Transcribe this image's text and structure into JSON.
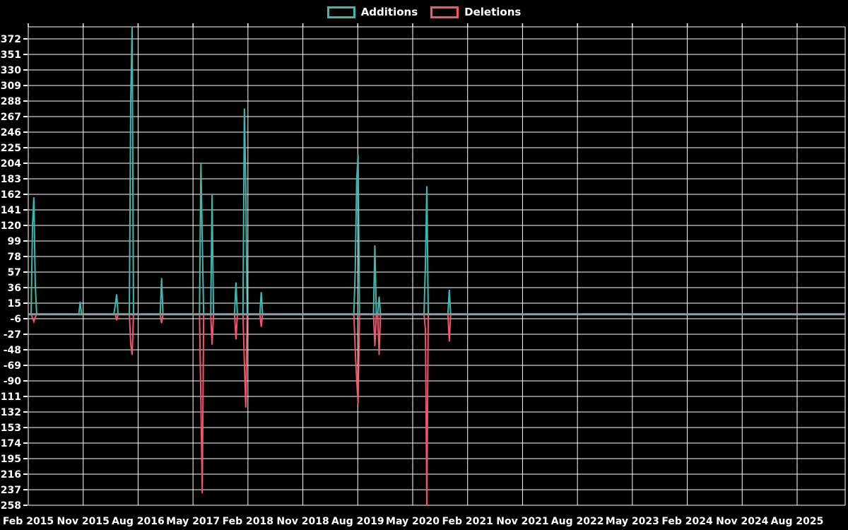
{
  "legend": {
    "items": [
      {
        "label": "Additions",
        "color": "#3cb8b1"
      },
      {
        "label": "Deletions",
        "color": "#f2556c"
      }
    ]
  },
  "colors": {
    "background": "#000000",
    "grid_line": "#ffffff",
    "zero_line": "#87a1a8",
    "axis_text": "#ffffff",
    "additions": "#3cb8b1",
    "deletions": "#f2556c"
  },
  "chart_data": {
    "type": "line",
    "title": "",
    "xlabel": "",
    "ylabel": "",
    "grid": true,
    "legend_position": "top-center",
    "baseline_value": 0,
    "x_axis": {
      "start": "2015-02-01",
      "end": "2026-04-01",
      "tick_interval_months": 9,
      "tick_labels": [
        "Feb 2015",
        "Nov 2015",
        "Aug 2016",
        "May 2017",
        "Feb 2018",
        "Nov 2018",
        "Aug 2019",
        "May 2020",
        "Feb 2021",
        "Nov 2021",
        "Aug 2022",
        "May 2023",
        "Feb 2024",
        "Nov 2024",
        "Aug 2025"
      ]
    },
    "y_axis": {
      "min": -258,
      "max": 372,
      "step": 21,
      "tick_labels": [
        372,
        351,
        330,
        309,
        288,
        267,
        246,
        225,
        204,
        183,
        162,
        141,
        120,
        99,
        78,
        57,
        36,
        15,
        -6,
        -27,
        -48,
        -69,
        -90,
        -111,
        -132,
        -153,
        -174,
        -195,
        -216,
        -237,
        -258
      ]
    },
    "series": [
      {
        "name": "Additions",
        "color": "#3cb8b1",
        "default_value": 0,
        "points": [
          {
            "date": "2015-02-22",
            "value": 120
          },
          {
            "date": "2015-03-01",
            "value": 158
          },
          {
            "date": "2015-03-08",
            "value": 40
          },
          {
            "date": "2015-10-18",
            "value": 17
          },
          {
            "date": "2016-04-10",
            "value": 12
          },
          {
            "date": "2016-04-17",
            "value": 27
          },
          {
            "date": "2016-06-26",
            "value": 288
          },
          {
            "date": "2016-07-03",
            "value": 390
          },
          {
            "date": "2016-11-27",
            "value": 49
          },
          {
            "date": "2017-06-11",
            "value": 205
          },
          {
            "date": "2017-06-18",
            "value": 100
          },
          {
            "date": "2017-08-06",
            "value": 161
          },
          {
            "date": "2017-12-03",
            "value": 43
          },
          {
            "date": "2018-01-14",
            "value": 278
          },
          {
            "date": "2018-01-21",
            "value": 170
          },
          {
            "date": "2018-04-08",
            "value": 30
          },
          {
            "date": "2019-07-21",
            "value": 60
          },
          {
            "date": "2019-07-28",
            "value": 180
          },
          {
            "date": "2019-08-04",
            "value": 216
          },
          {
            "date": "2019-10-27",
            "value": 93
          },
          {
            "date": "2019-11-17",
            "value": 24
          },
          {
            "date": "2020-07-05",
            "value": 66
          },
          {
            "date": "2020-07-12",
            "value": 173
          },
          {
            "date": "2020-11-01",
            "value": 33
          }
        ]
      },
      {
        "name": "Deletions",
        "color": "#f2556c",
        "default_value": 0,
        "points": [
          {
            "date": "2015-02-22",
            "value": -5
          },
          {
            "date": "2015-03-01",
            "value": -10
          },
          {
            "date": "2015-03-08",
            "value": -4
          },
          {
            "date": "2016-04-17",
            "value": -8
          },
          {
            "date": "2016-06-26",
            "value": -40
          },
          {
            "date": "2016-07-03",
            "value": -55
          },
          {
            "date": "2016-11-27",
            "value": -12
          },
          {
            "date": "2017-06-11",
            "value": -117
          },
          {
            "date": "2017-06-18",
            "value": -242
          },
          {
            "date": "2017-08-06",
            "value": -41
          },
          {
            "date": "2017-12-03",
            "value": -34
          },
          {
            "date": "2018-01-14",
            "value": -65
          },
          {
            "date": "2018-01-21",
            "value": -126
          },
          {
            "date": "2018-04-08",
            "value": -17
          },
          {
            "date": "2019-07-21",
            "value": -48
          },
          {
            "date": "2019-07-28",
            "value": -88
          },
          {
            "date": "2019-08-04",
            "value": -120
          },
          {
            "date": "2019-10-27",
            "value": -43
          },
          {
            "date": "2019-11-17",
            "value": -55
          },
          {
            "date": "2020-07-05",
            "value": -20
          },
          {
            "date": "2020-07-12",
            "value": -258
          },
          {
            "date": "2020-11-01",
            "value": -37
          }
        ]
      }
    ]
  }
}
